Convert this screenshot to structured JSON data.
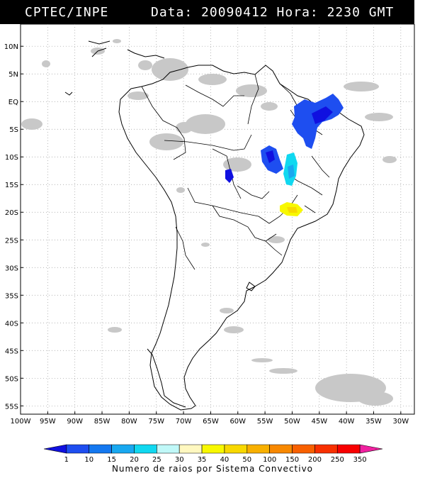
{
  "header": {
    "agency": "CPTEC/INPE",
    "datetime": "Data: 20090412 Hora: 2230 GMT"
  },
  "map": {
    "lat_labels": [
      "10N",
      "5N",
      "EQ",
      "5S",
      "10S",
      "15S",
      "20S",
      "25S",
      "30S",
      "35S",
      "40S",
      "45S",
      "50S",
      "55S"
    ],
    "lon_labels": [
      "100W",
      "95W",
      "90W",
      "85W",
      "80W",
      "75W",
      "70W",
      "65W",
      "60W",
      "55W",
      "50W",
      "45W",
      "40W",
      "35W",
      "30W"
    ],
    "colors": {
      "cloud": "#c8c8c8",
      "land_outline": "#000000",
      "grid": "#999999"
    }
  },
  "legend": {
    "values": [
      "1",
      "10",
      "15",
      "20",
      "25",
      "30",
      "35",
      "40",
      "50",
      "100",
      "150",
      "200",
      "250",
      "350"
    ],
    "colors": [
      "#1010e0",
      "#1e4ef0",
      "#1478f0",
      "#18a8f0",
      "#10d8f0",
      "#c0f8f8",
      "#fff8c0",
      "#f8f800",
      "#f8d800",
      "#f8b000",
      "#f88800",
      "#f86000",
      "#f83000",
      "#f80000",
      "#f020a0"
    ],
    "caption": "Numero de raios por Sistema Convectivo"
  }
}
